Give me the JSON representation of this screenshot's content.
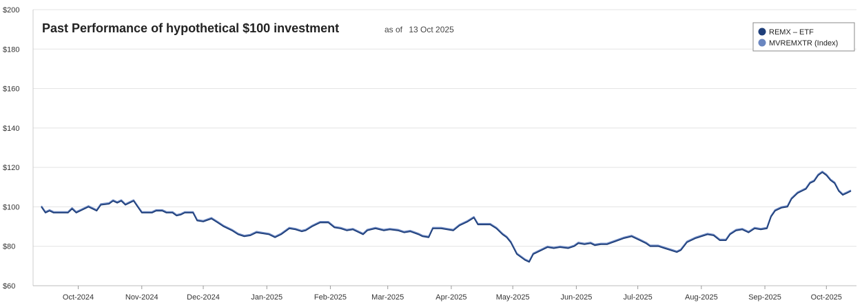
{
  "chart_data": {
    "type": "line",
    "title": "Past Performance of hypothetical $100 investment",
    "subtitle_prefix": "as of",
    "subtitle_date": "13 Oct 2025",
    "xlabel": "",
    "ylabel": "",
    "ylim": [
      60,
      200
    ],
    "y_ticks": [
      60,
      80,
      100,
      120,
      140,
      160,
      180,
      200
    ],
    "y_tick_labels": [
      "$60",
      "$80",
      "$100",
      "$120",
      "$140",
      "$160",
      "$180",
      "$200"
    ],
    "x_range": [
      "2024-09-13",
      "2025-10-13"
    ],
    "x_ticks": [
      {
        "date": "2024-10-01",
        "label": "Oct-2024"
      },
      {
        "date": "2024-11-01",
        "label": "Nov-2024"
      },
      {
        "date": "2024-12-01",
        "label": "Dec-2024"
      },
      {
        "date": "2025-01-01",
        "label": "Jan-2025"
      },
      {
        "date": "2025-02-01",
        "label": "Feb-2025"
      },
      {
        "date": "2025-03-01",
        "label": "Mar-2025"
      },
      {
        "date": "2025-04-01",
        "label": "Apr-2025"
      },
      {
        "date": "2025-05-01",
        "label": "May-2025"
      },
      {
        "date": "2025-06-01",
        "label": "Jun-2025"
      },
      {
        "date": "2025-07-01",
        "label": "Jul-2025"
      },
      {
        "date": "2025-08-01",
        "label": "Aug-2025"
      },
      {
        "date": "2025-09-01",
        "label": "Sep-2025"
      },
      {
        "date": "2025-10-01",
        "label": "Oct-2025"
      }
    ],
    "grid": true,
    "legend_position": "top-right",
    "series": [
      {
        "name": "REMX – ETF",
        "color": "#1f3f7a",
        "points": [
          [
            "2024-09-13",
            100
          ],
          [
            "2024-09-15",
            97
          ],
          [
            "2024-09-17",
            98
          ],
          [
            "2024-09-19",
            97
          ],
          [
            "2024-09-23",
            97
          ],
          [
            "2024-09-26",
            97
          ],
          [
            "2024-09-28",
            99
          ],
          [
            "2024-09-30",
            97
          ],
          [
            "2024-10-02",
            98
          ],
          [
            "2024-10-06",
            100
          ],
          [
            "2024-10-10",
            98
          ],
          [
            "2024-10-12",
            101
          ],
          [
            "2024-10-16",
            101.5
          ],
          [
            "2024-10-18",
            103
          ],
          [
            "2024-10-20",
            102
          ],
          [
            "2024-10-22",
            103
          ],
          [
            "2024-10-24",
            101
          ],
          [
            "2024-10-28",
            103
          ],
          [
            "2024-10-30",
            100
          ],
          [
            "2024-11-01",
            97
          ],
          [
            "2024-11-06",
            97
          ],
          [
            "2024-11-08",
            98
          ],
          [
            "2024-11-11",
            98
          ],
          [
            "2024-11-13",
            97
          ],
          [
            "2024-11-16",
            97
          ],
          [
            "2024-11-18",
            95.5
          ],
          [
            "2024-11-20",
            96
          ],
          [
            "2024-11-22",
            97
          ],
          [
            "2024-11-26",
            97
          ],
          [
            "2024-11-28",
            93
          ],
          [
            "2024-12-01",
            92.5
          ],
          [
            "2024-12-05",
            94
          ],
          [
            "2024-12-08",
            92
          ],
          [
            "2024-12-11",
            90
          ],
          [
            "2024-12-15",
            88
          ],
          [
            "2024-12-18",
            86
          ],
          [
            "2024-12-21",
            85
          ],
          [
            "2024-12-24",
            85.5
          ],
          [
            "2024-12-27",
            87
          ],
          [
            "2024-12-30",
            86.5
          ],
          [
            "2025-01-02",
            86
          ],
          [
            "2025-01-05",
            84.5
          ],
          [
            "2025-01-08",
            86
          ],
          [
            "2025-01-12",
            89
          ],
          [
            "2025-01-15",
            88.5
          ],
          [
            "2025-01-18",
            87.5
          ],
          [
            "2025-01-20",
            88
          ],
          [
            "2025-01-23",
            90
          ],
          [
            "2025-01-25",
            91
          ],
          [
            "2025-01-27",
            92
          ],
          [
            "2025-01-31",
            92
          ],
          [
            "2025-02-03",
            89.5
          ],
          [
            "2025-02-06",
            89
          ],
          [
            "2025-02-09",
            88
          ],
          [
            "2025-02-12",
            88.5
          ],
          [
            "2025-02-15",
            87
          ],
          [
            "2025-02-17",
            86
          ],
          [
            "2025-02-19",
            88
          ],
          [
            "2025-02-23",
            89
          ],
          [
            "2025-02-27",
            88
          ],
          [
            "2025-03-02",
            88.5
          ],
          [
            "2025-03-06",
            88
          ],
          [
            "2025-03-09",
            87
          ],
          [
            "2025-03-12",
            87.5
          ],
          [
            "2025-03-16",
            86
          ],
          [
            "2025-03-18",
            85
          ],
          [
            "2025-03-21",
            84.5
          ],
          [
            "2025-03-23",
            89
          ],
          [
            "2025-03-27",
            89
          ],
          [
            "2025-03-30",
            88.5
          ],
          [
            "2025-04-02",
            88
          ],
          [
            "2025-04-05",
            90.5
          ],
          [
            "2025-04-09",
            92.5
          ],
          [
            "2025-04-12",
            94.5
          ],
          [
            "2025-04-14",
            91
          ],
          [
            "2025-04-20",
            91
          ],
          [
            "2025-04-23",
            89
          ],
          [
            "2025-04-26",
            86
          ],
          [
            "2025-04-28",
            84.5
          ],
          [
            "2025-04-30",
            82
          ],
          [
            "2025-05-03",
            76
          ],
          [
            "2025-05-07",
            73
          ],
          [
            "2025-05-09",
            72
          ],
          [
            "2025-05-11",
            76
          ],
          [
            "2025-05-15",
            78
          ],
          [
            "2025-05-18",
            79.5
          ],
          [
            "2025-05-21",
            79
          ],
          [
            "2025-05-24",
            79.5
          ],
          [
            "2025-05-28",
            79
          ],
          [
            "2025-05-31",
            80
          ],
          [
            "2025-06-02",
            81.5
          ],
          [
            "2025-06-05",
            81
          ],
          [
            "2025-06-08",
            81.5
          ],
          [
            "2025-06-10",
            80.5
          ],
          [
            "2025-06-13",
            81
          ],
          [
            "2025-06-16",
            81
          ],
          [
            "2025-06-20",
            82.5
          ],
          [
            "2025-06-24",
            84
          ],
          [
            "2025-06-28",
            85
          ],
          [
            "2025-07-02",
            83
          ],
          [
            "2025-07-05",
            81.5
          ],
          [
            "2025-07-07",
            80
          ],
          [
            "2025-07-11",
            80
          ],
          [
            "2025-07-14",
            79
          ],
          [
            "2025-07-17",
            78
          ],
          [
            "2025-07-20",
            77
          ],
          [
            "2025-07-22",
            78
          ],
          [
            "2025-07-25",
            82
          ],
          [
            "2025-07-29",
            84
          ],
          [
            "2025-08-01",
            85
          ],
          [
            "2025-08-04",
            86
          ],
          [
            "2025-08-07",
            85.5
          ],
          [
            "2025-08-10",
            83
          ],
          [
            "2025-08-13",
            83
          ],
          [
            "2025-08-15",
            86
          ],
          [
            "2025-08-18",
            88
          ],
          [
            "2025-08-21",
            88.5
          ],
          [
            "2025-08-24",
            87
          ],
          [
            "2025-08-27",
            89
          ],
          [
            "2025-08-30",
            88.5
          ],
          [
            "2025-09-02",
            89
          ],
          [
            "2025-09-04",
            95
          ],
          [
            "2025-09-06",
            98
          ],
          [
            "2025-09-09",
            99.5
          ],
          [
            "2025-09-12",
            100
          ],
          [
            "2025-09-14",
            104
          ],
          [
            "2025-09-17",
            107
          ],
          [
            "2025-09-19",
            108
          ],
          [
            "2025-09-21",
            109
          ],
          [
            "2025-09-23",
            112
          ],
          [
            "2025-09-25",
            113
          ],
          [
            "2025-09-27",
            116
          ],
          [
            "2025-09-29",
            117.5
          ],
          [
            "2025-10-01",
            116
          ],
          [
            "2025-10-03",
            113.5
          ],
          [
            "2025-10-05",
            112
          ],
          [
            "2025-10-07",
            108
          ],
          [
            "2025-10-09",
            106
          ],
          [
            "2025-10-11",
            107
          ],
          [
            "2025-10-13",
            108
          ]
        ]
      },
      {
        "name": "MVREMXTR (Index)",
        "color": "#6a86c0",
        "points": []
      }
    ]
  }
}
